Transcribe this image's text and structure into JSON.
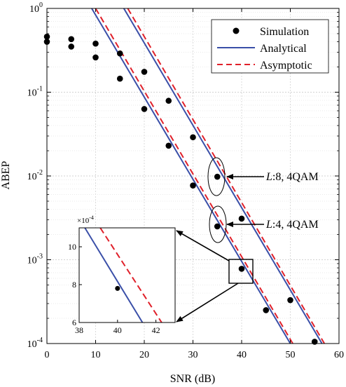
{
  "chart_data": {
    "type": "line",
    "title": "",
    "xlabel": "SNR (dB)",
    "ylabel": "ABEP",
    "xlim": [
      0,
      60
    ],
    "ylim": [
      0.0001,
      1
    ],
    "yscale": "log",
    "grid": true,
    "legend_position": "top-right",
    "x_ticks": [
      "0",
      "10",
      "20",
      "30",
      "40",
      "50",
      "60"
    ],
    "y_ticks": [
      {
        "base": "10",
        "exp": "0"
      },
      {
        "base": "10",
        "exp": "-1"
      },
      {
        "base": "10",
        "exp": "-2"
      },
      {
        "base": "10",
        "exp": "-3"
      },
      {
        "base": "10",
        "exp": "-4"
      }
    ],
    "legend": [
      "Simulation",
      "Analytical",
      "Asymptotic"
    ],
    "colors": {
      "simulation": "#000000",
      "analytical": "#3a4fa8",
      "asymptotic": "#e0202a"
    },
    "series": [
      {
        "group": "L:4, 4QAM",
        "simulation": {
          "x": [
            0,
            5,
            10,
            15,
            20,
            25,
            30,
            35,
            40,
            45,
            50,
            55
          ],
          "y": [
            0.4,
            0.35,
            0.26,
            0.145,
            0.063,
            0.023,
            0.0077,
            0.0025,
            0.00078,
            0.00025,
            0.00033,
            0.000105
          ]
        },
        "analytical": {
          "x": [
            9.2,
            50
          ],
          "y": [
            1,
            0.0001
          ]
        },
        "asymptotic": {
          "x": [
            10,
            50.5
          ],
          "y": [
            1,
            0.0001
          ]
        }
      },
      {
        "group": "L:8, 4QAM",
        "simulation": {
          "x": [
            0,
            5,
            10,
            15,
            20,
            25,
            30,
            35,
            40
          ],
          "y": [
            0.46,
            0.43,
            0.38,
            0.29,
            0.175,
            0.079,
            0.029,
            0.0098,
            0.0031
          ]
        },
        "analytical": {
          "x": [
            15.8,
            56.5
          ],
          "y": [
            1,
            0.0001
          ]
        },
        "asymptotic": {
          "x": [
            16.6,
            57
          ],
          "y": [
            1,
            0.0001
          ]
        }
      }
    ],
    "annotations": [
      {
        "text_italic": "L",
        "text": ":8, 4QAM"
      },
      {
        "text_italic": "L",
        "text": ":4, 4QAM"
      }
    ],
    "inset": {
      "xlim": [
        38,
        43
      ],
      "ylim": [
        6,
        11
      ],
      "multiplier_base": "×10",
      "multiplier_exp": "-4",
      "x_ticks": [
        "38",
        "40",
        "42"
      ],
      "y_ticks": [
        "6",
        "8",
        "10"
      ],
      "simulation_point": {
        "x": 40,
        "y": 7.8
      },
      "analytical": {
        "x": [
          38.3,
          41.3
        ],
        "y": [
          11,
          6
        ]
      },
      "asymptotic": {
        "x": [
          39.1,
          42.3
        ],
        "y": [
          11,
          6
        ]
      }
    }
  }
}
